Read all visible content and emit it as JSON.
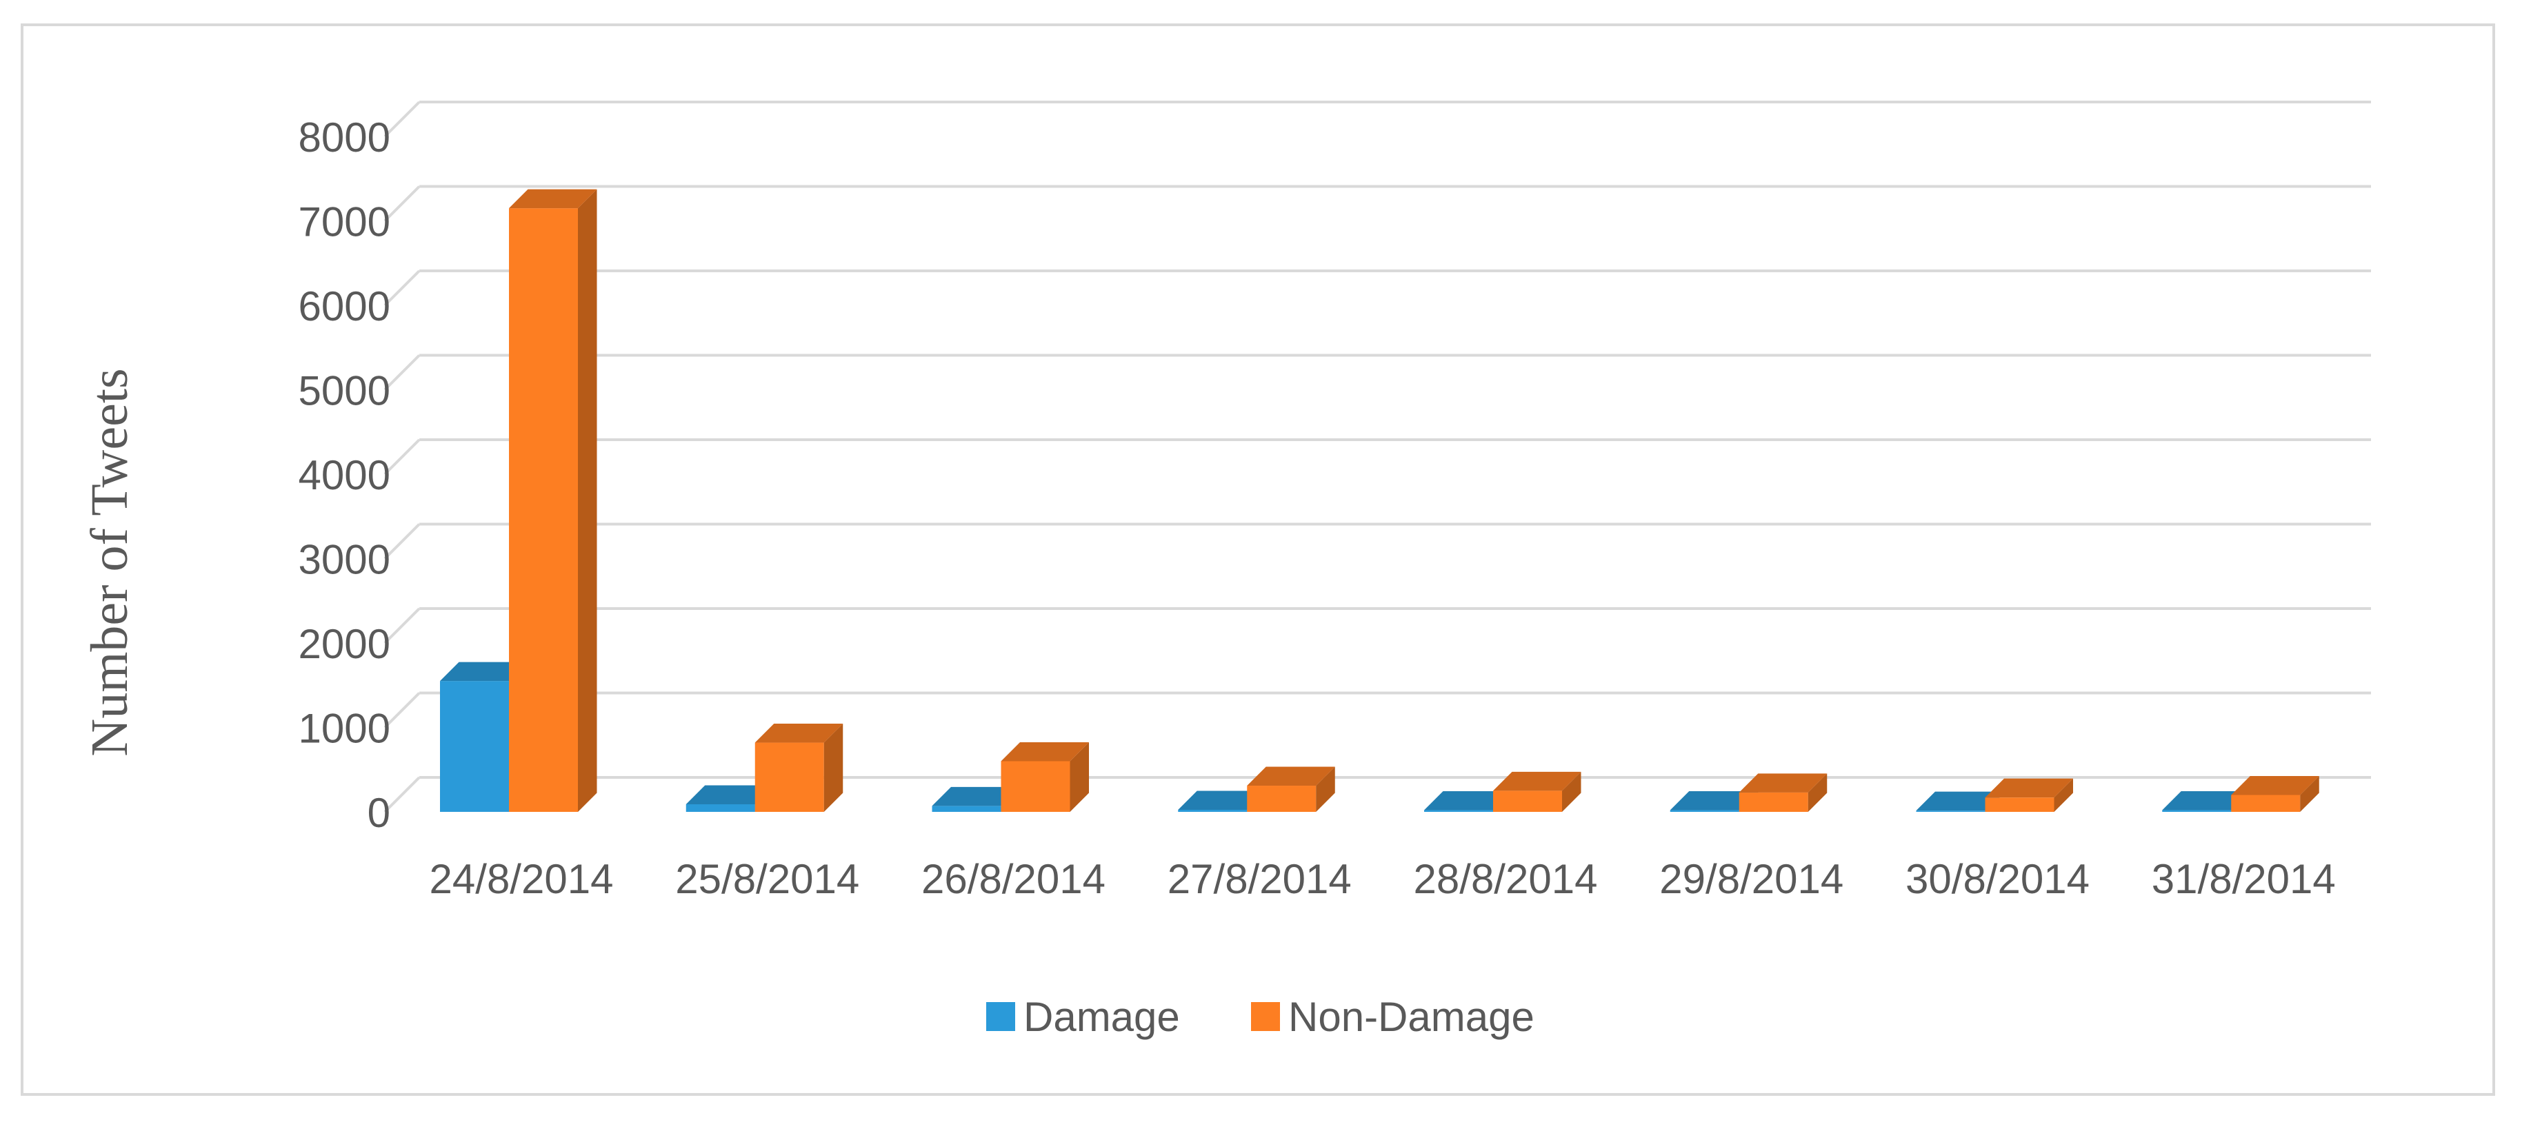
{
  "chart_data": {
    "type": "bar",
    "style": "3d-clustered-column",
    "categories": [
      "24/8/2014",
      "25/8/2014",
      "26/8/2014",
      "27/8/2014",
      "28/8/2014",
      "29/8/2014",
      "30/8/2014",
      "31/8/2014"
    ],
    "series": [
      {
        "name": "Damage",
        "color": "#2a9ad9",
        "values": [
          1550,
          90,
          70,
          25,
          20,
          20,
          15,
          20
        ]
      },
      {
        "name": "Non-Damage",
        "color": "#fd7e22",
        "values": [
          7150,
          820,
          600,
          310,
          250,
          230,
          170,
          200
        ]
      }
    ],
    "title": "",
    "xlabel": "",
    "ylabel": "Number of Tweets",
    "ylim": [
      0,
      8000
    ],
    "yticks": [
      "0",
      "1000",
      "2000",
      "3000",
      "4000",
      "5000",
      "6000",
      "7000",
      "8000"
    ],
    "grid": true,
    "legend": "bottom"
  }
}
